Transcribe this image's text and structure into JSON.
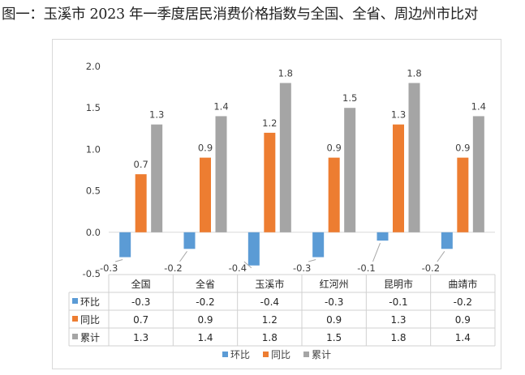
{
  "figure": {
    "title": "图一：玉溪市 2023 年一季度居民消费价格指数与全国、全省、周边州市比对"
  },
  "colors": {
    "环比": "#5b9bd5",
    "同比": "#ed7d31",
    "累计": "#a5a5a5"
  },
  "chart_data": {
    "type": "bar",
    "categories": [
      "全国",
      "全省",
      "玉溪市",
      "红河州",
      "昆明市",
      "曲靖市"
    ],
    "series": [
      {
        "name": "环比",
        "values": [
          -0.3,
          -0.2,
          -0.4,
          -0.3,
          -0.1,
          -0.2
        ]
      },
      {
        "name": "同比",
        "values": [
          0.7,
          0.9,
          1.2,
          0.9,
          1.3,
          0.9
        ]
      },
      {
        "name": "累计",
        "values": [
          1.3,
          1.4,
          1.8,
          1.5,
          1.8,
          1.4
        ]
      }
    ],
    "ylim": [
      -0.5,
      2.0
    ],
    "yticks": [
      "2.0",
      "1.5",
      "1.0",
      "0.5",
      "0.0",
      "-0.5"
    ],
    "ytick_values": [
      2.0,
      1.5,
      1.0,
      0.5,
      0.0,
      -0.5
    ],
    "value_labels": {
      "环比": [
        "-0.3",
        "-0.2",
        "-0.4",
        "-0.3",
        "-0.1",
        "-0.2"
      ],
      "同比": [
        "0.7",
        "0.9",
        "1.2",
        "0.9",
        "1.3",
        "0.9"
      ],
      "累计": [
        "1.3",
        "1.4",
        "1.8",
        "1.5",
        "1.8",
        "1.4"
      ]
    },
    "grid": false,
    "data_table": true,
    "legend": "bottom"
  }
}
